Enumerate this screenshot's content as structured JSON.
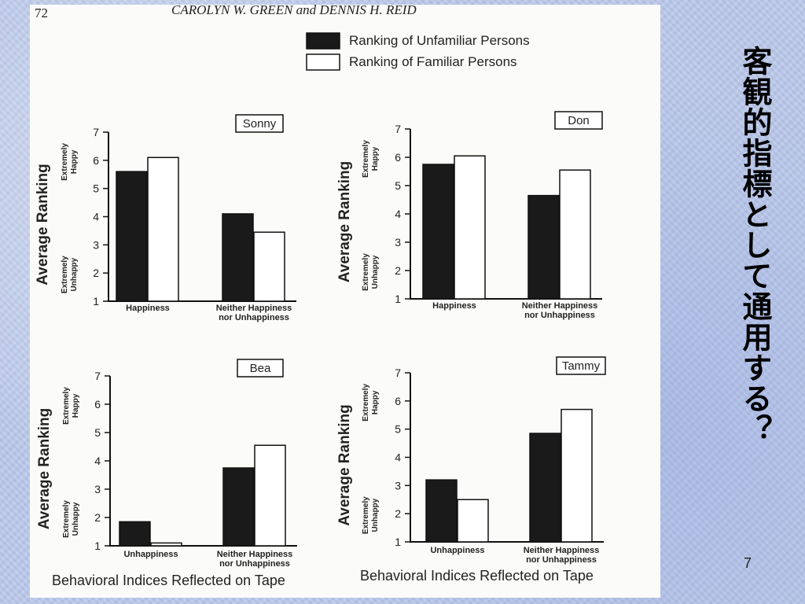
{
  "slide": {
    "title": "客観的指標として通用する？",
    "page_number": "7"
  },
  "scan": {
    "page_number": "72",
    "running_head": "CAROLYN W. GREEN and DENNIS H. REID",
    "legend": {
      "unfamiliar": {
        "label": "Ranking of Unfamiliar Persons",
        "color": "#1a1a1a"
      },
      "familiar": {
        "label": "Ranking of Familiar Persons",
        "color": "#ffffff"
      }
    },
    "ylabel": "Average Ranking",
    "y_top_anchor": [
      "Extremely",
      "Happy"
    ],
    "y_bottom_anchor": [
      "Extremely",
      "Unhappy"
    ],
    "x_title": "Behavioral Indices Reflected on Tape"
  },
  "chart_data": [
    {
      "type": "bar",
      "name": "Sonny",
      "ylim": [
        1,
        7
      ],
      "categories": [
        [
          "Happiness"
        ],
        [
          "Neither Happiness",
          "nor Unhappiness"
        ]
      ],
      "series": [
        {
          "key": "unfamiliar",
          "values": [
            5.6,
            4.1
          ]
        },
        {
          "key": "familiar",
          "values": [
            6.1,
            3.45
          ]
        }
      ]
    },
    {
      "type": "bar",
      "name": "Don",
      "ylim": [
        1,
        7
      ],
      "categories": [
        [
          "Happiness"
        ],
        [
          "Neither Happiness",
          "nor Unhappiness"
        ]
      ],
      "series": [
        {
          "key": "unfamiliar",
          "values": [
            5.75,
            4.65
          ]
        },
        {
          "key": "familiar",
          "values": [
            6.05,
            5.55
          ]
        }
      ]
    },
    {
      "type": "bar",
      "name": "Bea",
      "ylim": [
        1,
        7
      ],
      "categories": [
        [
          "Unhappiness"
        ],
        [
          "Neither Happiness",
          "nor Unhappiness"
        ]
      ],
      "series": [
        {
          "key": "unfamiliar",
          "values": [
            1.85,
            3.75
          ]
        },
        {
          "key": "familiar",
          "values": [
            1.1,
            4.55
          ]
        }
      ]
    },
    {
      "type": "bar",
      "name": "Tammy",
      "ylim": [
        1,
        7
      ],
      "categories": [
        [
          "Unhappiness"
        ],
        [
          "Neither Happiness",
          "nor Unhappiness"
        ]
      ],
      "series": [
        {
          "key": "unfamiliar",
          "values": [
            3.2,
            4.85
          ]
        },
        {
          "key": "familiar",
          "values": [
            2.5,
            5.7
          ]
        }
      ]
    }
  ]
}
